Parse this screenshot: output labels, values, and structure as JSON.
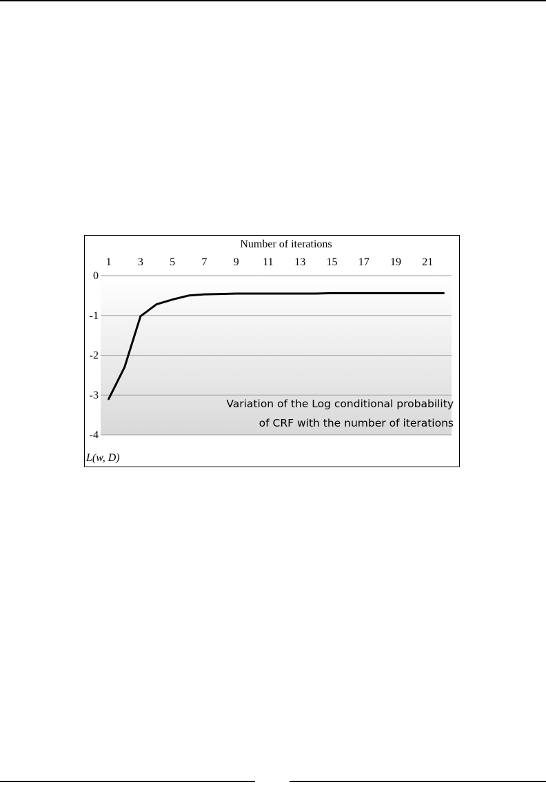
{
  "page": {
    "background": "#ffffff",
    "rule_color": "#000000"
  },
  "chart_data": {
    "type": "line",
    "title": "",
    "xlabel": "Number of iterations",
    "ylabel": "L(w, D)",
    "x_axis_position": "top",
    "x_ticks": [
      1,
      3,
      5,
      7,
      9,
      11,
      13,
      15,
      17,
      19,
      21
    ],
    "x": [
      1,
      2,
      3,
      4,
      5,
      6,
      7,
      8,
      9,
      10,
      11,
      12,
      13,
      14,
      15,
      16,
      17,
      18,
      19,
      20,
      21,
      22
    ],
    "series": [
      {
        "values": [
          -3.1,
          -2.3,
          -1.02,
          -0.72,
          -0.6,
          -0.5,
          -0.47,
          -0.46,
          -0.45,
          -0.45,
          -0.45,
          -0.45,
          -0.45,
          -0.45,
          -0.44,
          -0.44,
          -0.44,
          -0.44,
          -0.44,
          -0.44,
          -0.44,
          -0.44
        ],
        "color": "#000000"
      }
    ],
    "xlim": [
      0.5,
      22.5
    ],
    "ylim": [
      -4,
      0
    ],
    "y_ticks": [
      0,
      -1,
      -2,
      -3,
      -4
    ],
    "grid": true,
    "gridline_color": "#9e9e9e",
    "plot_gradient": [
      "#ffffff",
      "#d9d9d9"
    ],
    "annotation": {
      "lines": [
        "Variation of the Log conditional probability",
        "of CRF with the number of iterations"
      ],
      "placement": "bottom-right"
    }
  }
}
